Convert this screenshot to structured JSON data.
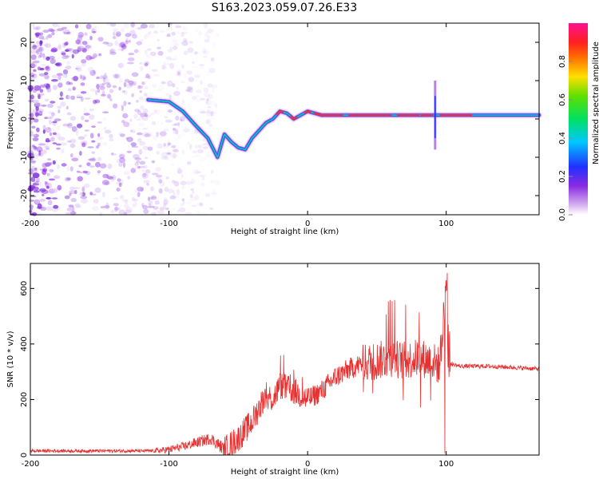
{
  "title": "S163.2023.059.07.26.E33",
  "chart_data": [
    {
      "type": "heatmap",
      "xlabel": "Height of straight line (km)",
      "ylabel": "Frequency (Hz)",
      "xlim": [
        -200,
        167
      ],
      "ylim": [
        -25,
        25
      ],
      "xticks": [
        -200,
        -100,
        0,
        100
      ],
      "yticks": [
        -20,
        -10,
        0,
        10,
        20
      ],
      "colorbar": {
        "label": "Normalized spectral amplitude",
        "range": [
          0,
          1
        ],
        "ticks": [
          0.0,
          0.2,
          0.4,
          0.6,
          0.8
        ],
        "tick_labels": [
          "0.0",
          "0.2",
          "0.4",
          "0.6",
          "0.8"
        ]
      },
      "ridge": {
        "x": [
          -115,
          -100,
          -90,
          -80,
          -72,
          -65,
          -60,
          -55,
          -50,
          -45,
          -40,
          -35,
          -30,
          -25,
          -20,
          -15,
          -10,
          -5,
          0,
          10,
          30,
          50,
          70,
          85,
          92,
          100,
          120,
          140,
          167
        ],
        "y": [
          5,
          4.5,
          2,
          -2,
          -5,
          -10,
          -4,
          -6,
          -7.5,
          -8,
          -5,
          -3,
          -1,
          0,
          2,
          1.5,
          0,
          1,
          2,
          1,
          1,
          1,
          1,
          1,
          1,
          1,
          1,
          1,
          1
        ]
      },
      "colors": {
        "noise": "#8a2be2",
        "background": "#ffffff"
      }
    },
    {
      "type": "line",
      "xlabel": "Height of straight line (km)",
      "ylabel": "SNR (10 * v/v)",
      "xlim": [
        -200,
        167
      ],
      "ylim": [
        0,
        690
      ],
      "xticks": [
        -200,
        -100,
        0,
        100
      ],
      "yticks": [
        0,
        200,
        400,
        600
      ],
      "color": "#e83030",
      "series_envelope": {
        "x": [
          -200,
          -150,
          -110,
          -100,
          -90,
          -80,
          -70,
          -60,
          -50,
          -40,
          -30,
          -25,
          -20,
          -10,
          0,
          10,
          20,
          30,
          40,
          50,
          60,
          70,
          80,
          90,
          95,
          100,
          102,
          110,
          130,
          150,
          167
        ],
        "y": [
          15,
          15,
          15,
          20,
          30,
          45,
          60,
          20,
          60,
          120,
          220,
          200,
          250,
          230,
          200,
          230,
          280,
          310,
          330,
          340,
          350,
          340,
          350,
          340,
          320,
          600,
          330,
          320,
          320,
          315,
          310
        ]
      }
    }
  ]
}
